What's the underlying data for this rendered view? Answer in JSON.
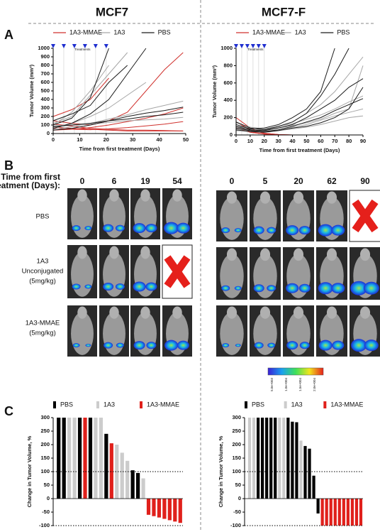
{
  "columns": [
    "MCF7",
    "MCF7-F"
  ],
  "panels": [
    "A",
    "B",
    "C"
  ],
  "panel_b": {
    "time_label": [
      "Time from first",
      "treatment (Days):"
    ],
    "days": [
      [
        0,
        6,
        19,
        54
      ],
      [
        0,
        5,
        20,
        62,
        90
      ]
    ],
    "rows": [
      [
        "PBS"
      ],
      [
        "1A3",
        "Unconjugated",
        "(5mg/kg)"
      ],
      [
        "1A3-MMAE",
        "(5mg/kg)"
      ]
    ],
    "colorbar_labels": [
      "5.0e+003",
      "1.0e+004",
      "1.5e+004",
      "2.0e+004"
    ]
  },
  "chart_data": [
    {
      "type": "line",
      "xlabel": "Time from first treatment (Days)",
      "ylabel": "Tumor Volume (mm³)",
      "x": [
        0,
        7,
        14,
        21,
        28,
        35,
        42,
        49
      ],
      "xlim": [
        0,
        50
      ],
      "ylim": [
        0,
        1000
      ],
      "xticks": [
        0,
        10,
        20,
        30,
        40,
        50
      ],
      "yticks": [
        0,
        100,
        200,
        300,
        400,
        500,
        600,
        700,
        800,
        900,
        1000
      ],
      "treatment_days": [
        0,
        4,
        8,
        12,
        16,
        20
      ],
      "treatment_label": "Treatments",
      "series": [
        {
          "name": "1A3-MMAE",
          "color": "#d0312d",
          "lines": [
            [
              110,
              90,
              60,
              50,
              40,
              40,
              35,
              30
            ],
            [
              80,
              60,
              50,
              40,
              30,
              30,
              30,
              30
            ],
            [
              150,
              120,
              100,
              150,
              250,
              500,
              750,
              950
            ],
            [
              40,
              50,
              70,
              100,
              140,
              180,
              230,
              300
            ],
            [
              200,
              280,
              400,
              650,
              null,
              null,
              null,
              null
            ],
            [
              60,
              50,
              45,
              55,
              70,
              90,
              110,
              140
            ]
          ]
        },
        {
          "name": "1A3",
          "color": "#a6a6a6",
          "lines": [
            [
              120,
              200,
              450,
              700,
              950,
              null,
              null,
              null
            ],
            [
              100,
              250,
              500,
              800,
              null,
              null,
              null,
              null
            ],
            [
              70,
              120,
              200,
              300,
              450,
              600,
              null,
              null
            ],
            [
              50,
              80,
              120,
              170,
              220,
              280,
              330,
              380
            ],
            [
              90,
              100,
              110,
              130,
              150,
              160,
              170,
              190
            ]
          ]
        },
        {
          "name": "PBS",
          "color": "#1a1a1a",
          "lines": [
            [
              100,
              180,
              420,
              1000,
              null,
              null,
              null,
              null
            ],
            [
              150,
              230,
              330,
              600,
              800,
              null,
              null,
              null
            ],
            [
              60,
              120,
              230,
              400,
              700,
              1000,
              null,
              null
            ],
            [
              40,
              60,
              100,
              150,
              200,
              240,
              270,
              310
            ],
            [
              80,
              100,
              120,
              150,
              170,
              200,
              220,
              250
            ]
          ]
        }
      ]
    },
    {
      "type": "line",
      "xlabel": "Time from first treatment (Days)",
      "ylabel": "Tumor Volume (mm³)",
      "x": [
        0,
        10,
        20,
        30,
        40,
        50,
        60,
        70,
        80,
        90
      ],
      "xlim": [
        0,
        90
      ],
      "ylim": [
        0,
        1000
      ],
      "xticks": [
        0,
        10,
        20,
        30,
        40,
        50,
        60,
        70,
        80,
        90
      ],
      "yticks": [
        0,
        200,
        400,
        600,
        800,
        1000
      ],
      "treatment_days": [
        0,
        4,
        8,
        12,
        16,
        20
      ],
      "treatment_label": "Treatments",
      "series": [
        {
          "name": "1A3-MMAE",
          "color": "#d0312d",
          "lines": [
            [
              150,
              60,
              20,
              5,
              0,
              null,
              null,
              null,
              null,
              null
            ],
            [
              100,
              40,
              10,
              0,
              0,
              null,
              null,
              null,
              null,
              null
            ],
            [
              200,
              80,
              20,
              5,
              0,
              null,
              null,
              null,
              null,
              null
            ],
            [
              80,
              30,
              10,
              0,
              0,
              null,
              null,
              null,
              null,
              null
            ]
          ]
        },
        {
          "name": "1A3",
          "color": "#a6a6a6",
          "lines": [
            [
              100,
              80,
              60,
              90,
              150,
              250,
              350,
              500,
              700,
              900
            ],
            [
              140,
              90,
              70,
              100,
              130,
              180,
              230,
              300,
              380,
              450
            ],
            [
              70,
              50,
              40,
              60,
              90,
              120,
              170,
              220,
              260,
              300
            ],
            [
              90,
              60,
              60,
              80,
              110,
              140,
              180,
              250,
              300,
              800
            ],
            [
              50,
              40,
              40,
              50,
              70,
              90,
              120,
              160,
              200,
              220
            ]
          ]
        },
        {
          "name": "PBS",
          "color": "#1a1a1a",
          "lines": [
            [
              150,
              80,
              60,
              100,
              150,
              250,
              450,
              700,
              1000,
              null
            ],
            [
              100,
              60,
              50,
              80,
              120,
              200,
              300,
              400,
              550,
              650
            ],
            [
              80,
              50,
              40,
              60,
              100,
              150,
              200,
              280,
              350,
              420
            ],
            [
              120,
              70,
              80,
              120,
              200,
              300,
              500,
              1000,
              null,
              null
            ],
            [
              60,
              40,
              30,
              50,
              80,
              100,
              140,
              200,
              300,
              550
            ]
          ]
        }
      ]
    },
    {
      "type": "waterfall",
      "ylabel": "Change in Tumor Volume, %",
      "ylim": [
        -100,
        300
      ],
      "yticks": [
        -100,
        -50,
        0,
        50,
        100,
        150,
        200,
        250,
        300
      ],
      "ref_lines": [
        100,
        -100
      ],
      "series": [
        {
          "name": "PBS",
          "color": "#000000",
          "values": [
            300,
            300,
            null,
            null,
            300,
            null,
            300,
            null,
            null,
            240,
            null,
            null,
            null,
            null,
            105,
            95,
            null,
            null,
            null,
            null,
            null,
            null,
            null,
            null
          ]
        },
        {
          "name": "1A3",
          "color": "#cccccc",
          "values": [
            null,
            null,
            300,
            300,
            null,
            null,
            null,
            300,
            300,
            null,
            null,
            200,
            170,
            140,
            null,
            null,
            75,
            null,
            null,
            null,
            null,
            null,
            null,
            null
          ]
        },
        {
          "name": "1A3-MMAE",
          "color": "#e0201b",
          "values": [
            null,
            null,
            null,
            null,
            null,
            300,
            null,
            null,
            null,
            null,
            205,
            null,
            null,
            null,
            null,
            null,
            null,
            -60,
            -65,
            -70,
            -75,
            -80,
            -85,
            -90
          ]
        }
      ]
    },
    {
      "type": "waterfall",
      "ylabel": "Change in Tumor Volume, %",
      "ylim": [
        -100,
        300
      ],
      "yticks": [
        -100,
        -50,
        0,
        50,
        100,
        150,
        200,
        250,
        300
      ],
      "ref_lines": [
        100,
        -100
      ],
      "series": [
        {
          "name": "PBS",
          "color": "#000000",
          "values": [
            null,
            null,
            300,
            300,
            300,
            300,
            300,
            null,
            null,
            300,
            285,
            283,
            null,
            195,
            185,
            85,
            -55,
            null,
            null,
            null,
            null,
            null,
            null,
            null,
            null,
            null,
            null
          ]
        },
        {
          "name": "1A3",
          "color": "#cccccc",
          "values": [
            300,
            300,
            null,
            null,
            null,
            null,
            null,
            300,
            300,
            null,
            null,
            null,
            215,
            null,
            null,
            null,
            null,
            null,
            null,
            null,
            null,
            null,
            null,
            null,
            null,
            null,
            null
          ]
        },
        {
          "name": "1A3-MMAE",
          "color": "#e0201b",
          "values": [
            null,
            null,
            null,
            null,
            null,
            null,
            null,
            null,
            null,
            null,
            null,
            null,
            null,
            null,
            null,
            null,
            null,
            -100,
            -100,
            -100,
            -100,
            -100,
            -100,
            -100,
            -100,
            -100,
            -100
          ]
        }
      ]
    }
  ]
}
